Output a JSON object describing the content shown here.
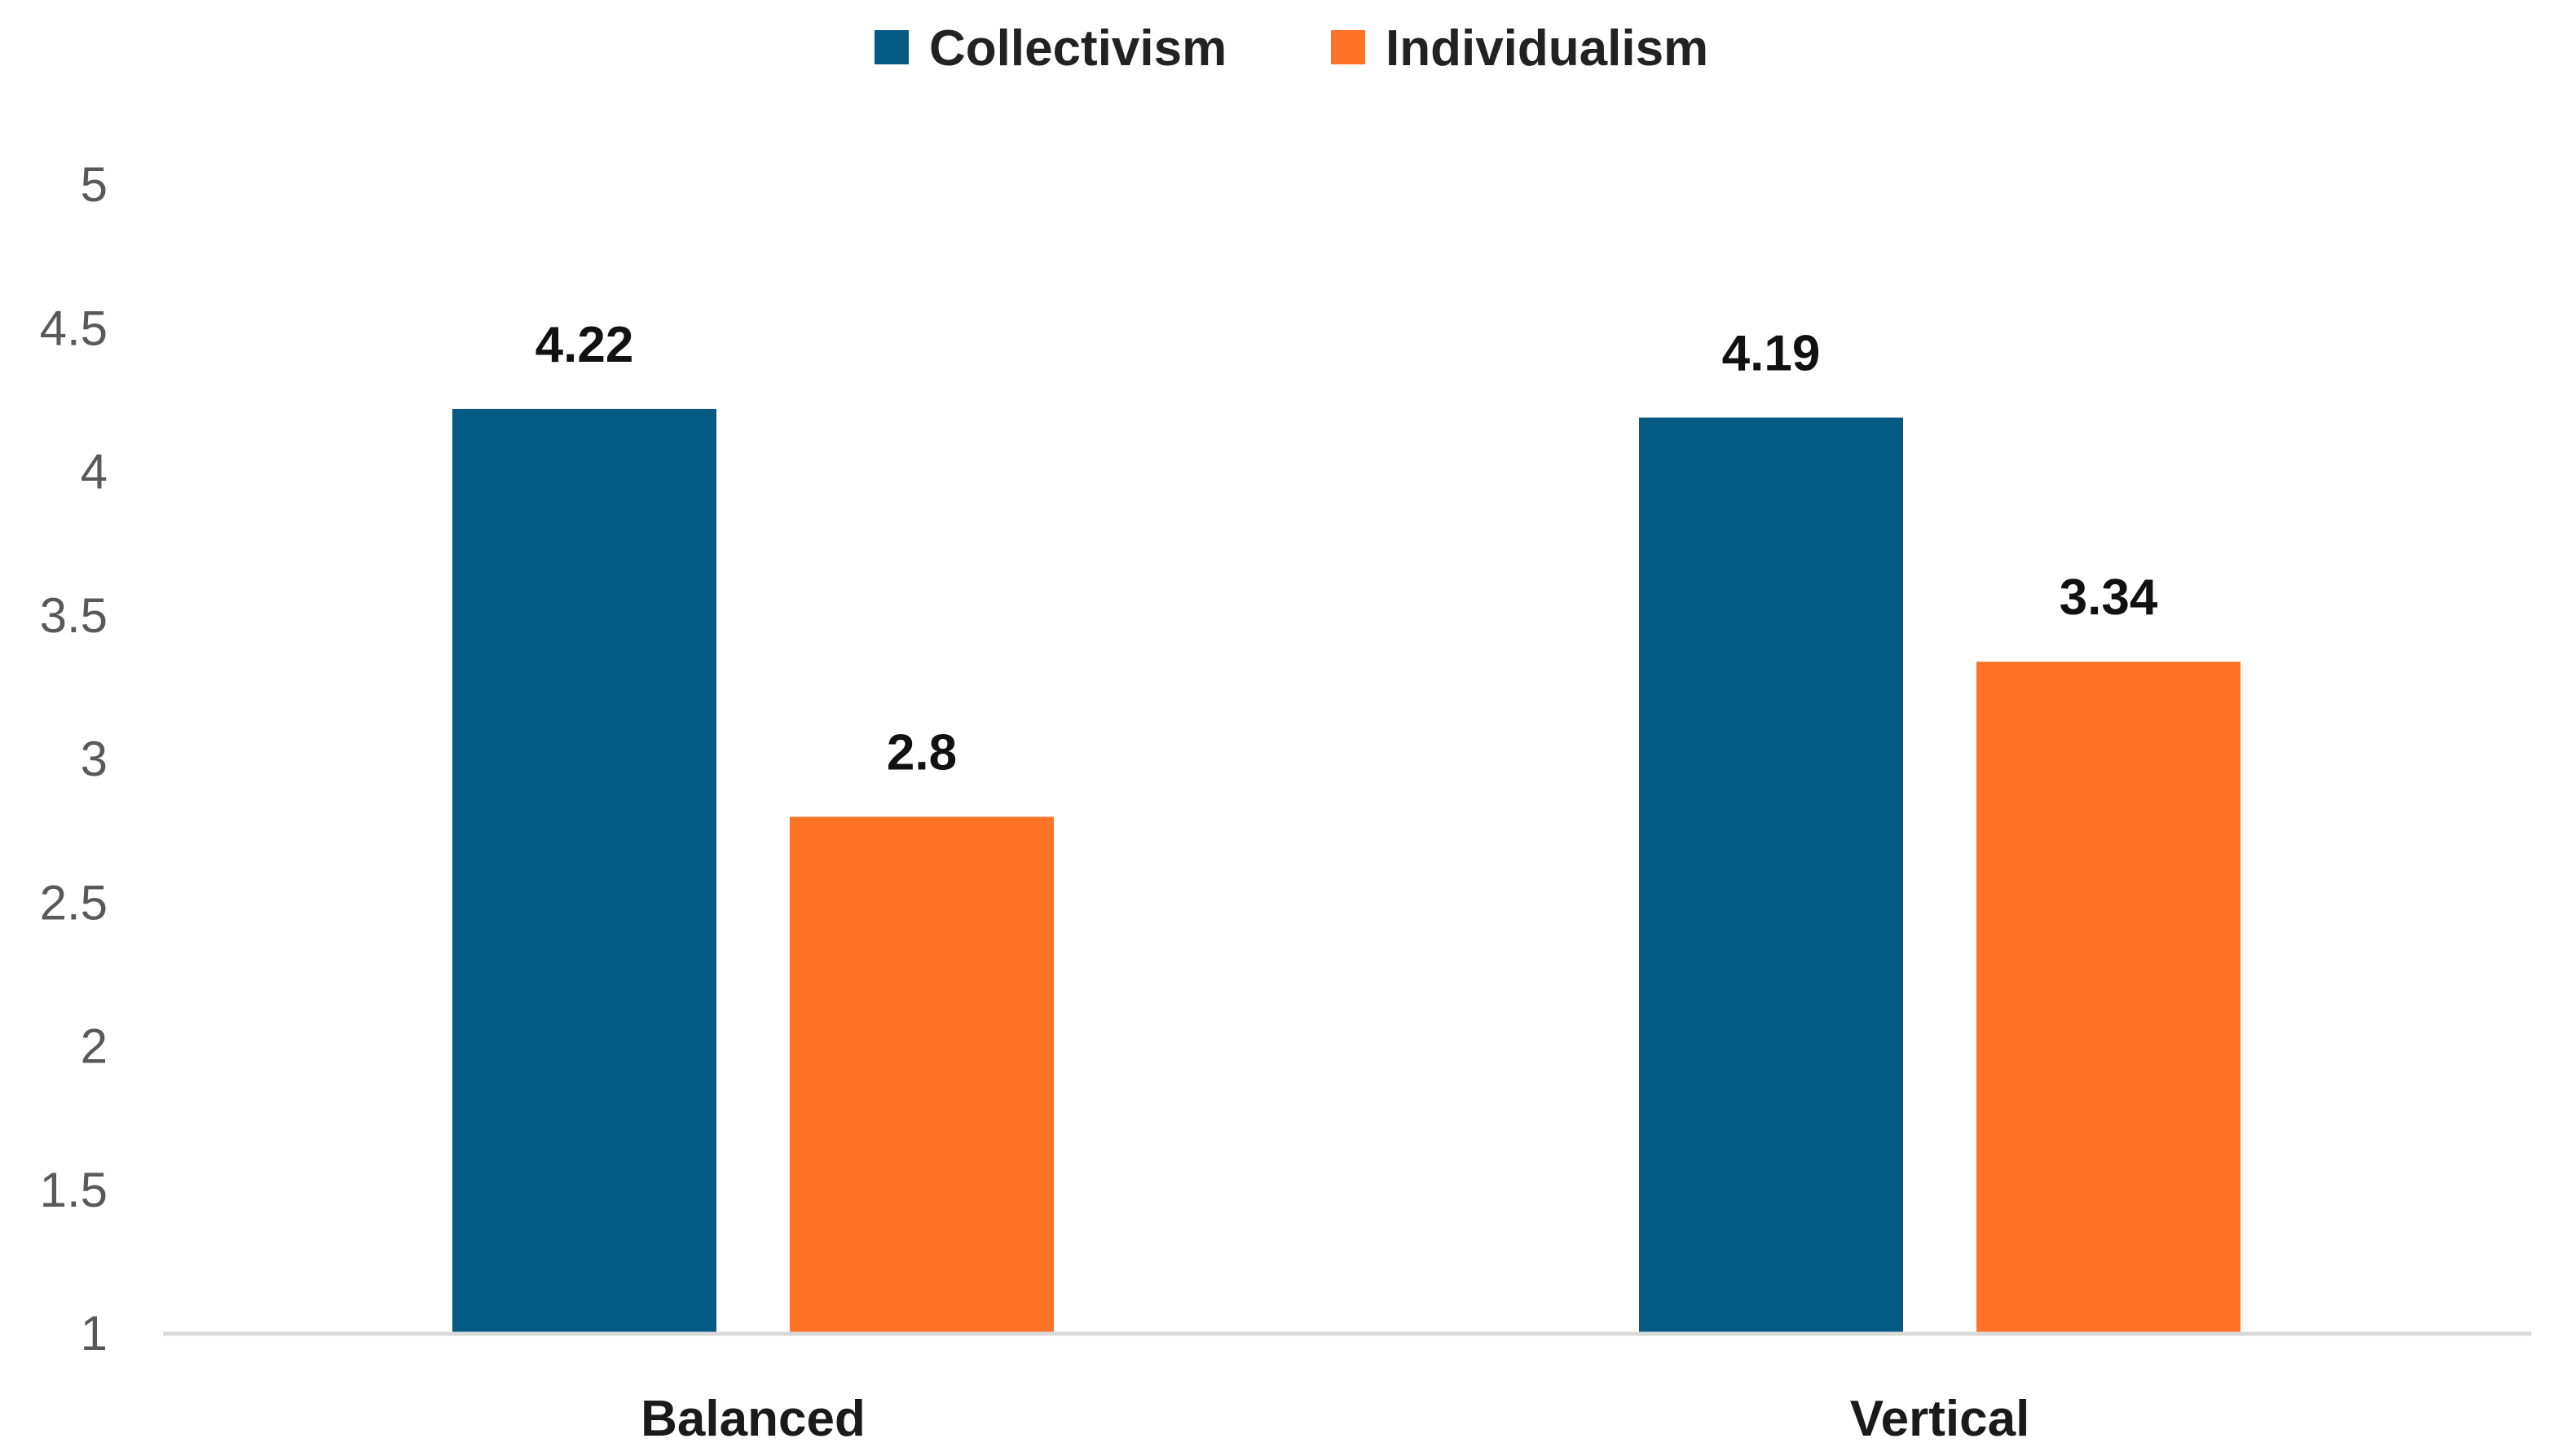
{
  "chart_data": {
    "type": "bar",
    "categories": [
      "Balanced",
      "Vertical"
    ],
    "series": [
      {
        "name": "Collectivism",
        "color": "#045A82",
        "values": [
          4.22,
          4.19
        ]
      },
      {
        "name": "Individualism",
        "color": "#FF7326",
        "values": [
          2.8,
          3.34
        ]
      }
    ],
    "data_labels": [
      [
        "4.22",
        "4.19"
      ],
      [
        "2.8",
        "3.34"
      ]
    ],
    "ylim": [
      1,
      5
    ],
    "yticks": [
      "1",
      "1.5",
      "2",
      "2.5",
      "3",
      "3.5",
      "4",
      "4.5",
      "5"
    ],
    "ytick_values": [
      1,
      1.5,
      2,
      2.5,
      3,
      3.5,
      4,
      4.5,
      5
    ],
    "grid": false,
    "legend_position": "top-center",
    "axis_color": "#D9D9D9"
  }
}
